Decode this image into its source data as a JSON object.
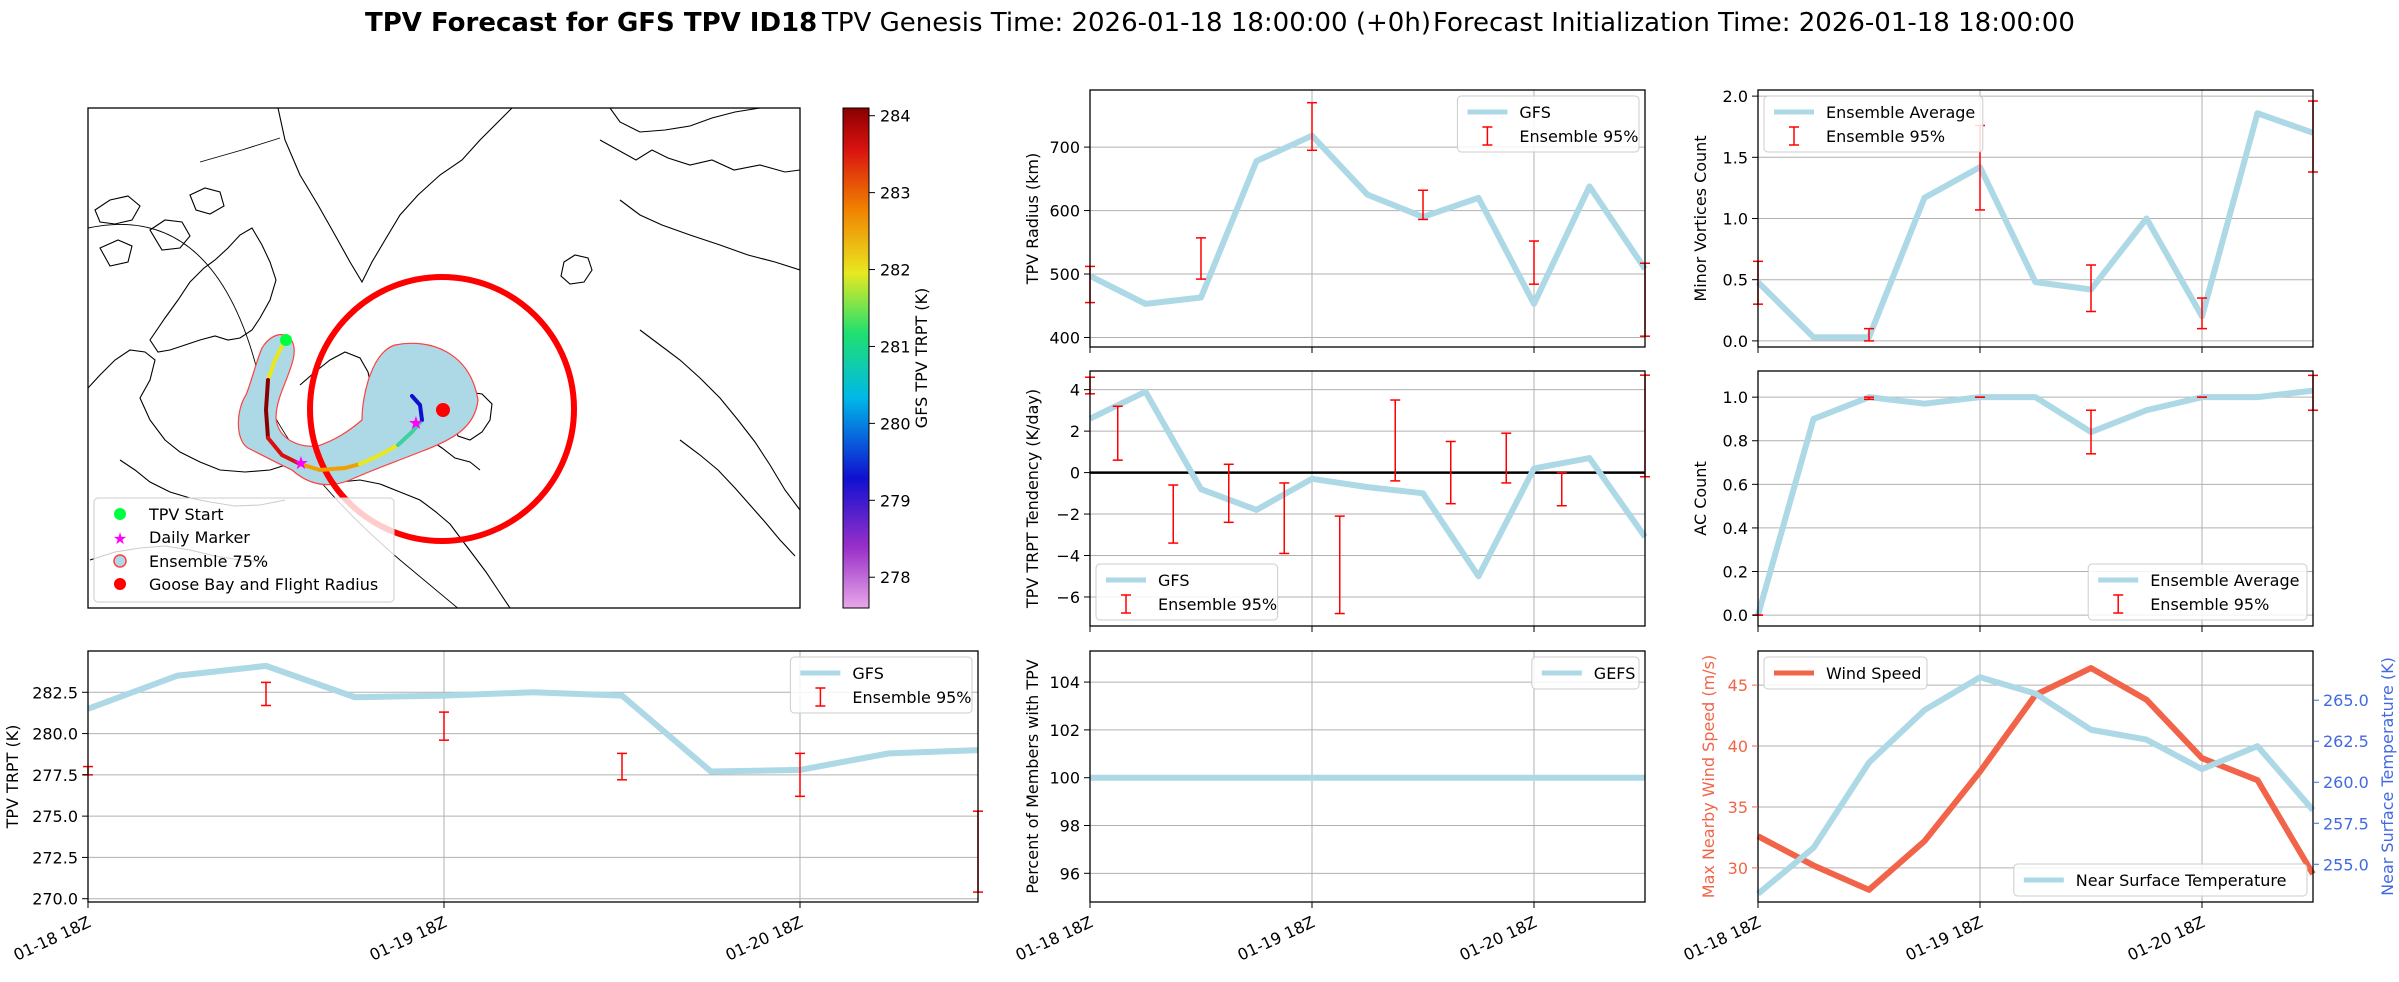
{
  "title": {
    "bold": "TPV Forecast for GFS TPV ID18",
    "genesis": "TPV Genesis Time: 2026-01-18 18:00:00 (+0h)",
    "init": "Forecast Initialization Time: 2026-01-18 18:00:00"
  },
  "colors": {
    "gfs_line": "#add8e6",
    "err": "#ff0000",
    "wind": "#f26449",
    "temp_axis": "#4169e1",
    "wind_axis": "#f26449",
    "ensemble_fill": "#add8e6",
    "radius": "#ff0000"
  },
  "x_tick_labels": [
    "01-18 18Z",
    "01-19 18Z",
    "01-20 18Z"
  ],
  "map": {
    "legend": [
      "TPV Start",
      "Daily Marker",
      "Ensemble 75%",
      "Goose Bay and Flight Radius"
    ],
    "colorbar": {
      "label": "GFS TPV TRPT (K)",
      "ticks": [
        "284",
        "283",
        "282",
        "281",
        "280",
        "279",
        "278"
      ],
      "min": 277.6,
      "max": 284.1
    }
  },
  "chart_data": [
    {
      "id": "trpt",
      "type": "line",
      "ylabel": "TPV TRPT (K)",
      "ylim": [
        269.8,
        285.0
      ],
      "yticks": [
        "270.0",
        "272.5",
        "275.0",
        "277.5",
        "280.0",
        "282.5"
      ],
      "ytick_values": [
        270.0,
        272.5,
        275.0,
        277.5,
        280.0,
        282.5
      ],
      "x": [
        0,
        0.25,
        0.5,
        0.75,
        1.0,
        1.25,
        1.5,
        1.75,
        2.0,
        2.25,
        2.5
      ],
      "series": [
        {
          "name": "GFS",
          "values": [
            281.5,
            283.5,
            284.1,
            282.2,
            282.3,
            282.5,
            282.3,
            277.7,
            277.8,
            278.8,
            279.0
          ]
        }
      ],
      "errorbars": [
        {
          "x": 0,
          "low": 277.5,
          "high": 278.0
        },
        {
          "x": 0.5,
          "low": 281.7,
          "high": 283.1
        },
        {
          "x": 1.0,
          "low": 279.6,
          "high": 281.3
        },
        {
          "x": 1.5,
          "low": 277.2,
          "high": 278.8
        },
        {
          "x": 2.0,
          "low": 276.2,
          "high": 278.8
        },
        {
          "x": 2.5,
          "low": 270.4,
          "high": 275.3
        }
      ],
      "legend": [
        "GFS",
        "Ensemble 95%"
      ]
    },
    {
      "id": "radius",
      "type": "line",
      "ylabel": "TPV Radius (km)",
      "ylim": [
        385,
        790
      ],
      "yticks": [
        "400",
        "500",
        "600",
        "700"
      ],
      "ytick_values": [
        400,
        500,
        600,
        700
      ],
      "x": [
        0,
        0.25,
        0.5,
        0.75,
        1.0,
        1.25,
        1.5,
        1.75,
        2.0,
        2.25,
        2.5
      ],
      "series": [
        {
          "name": "GFS",
          "values": [
            497,
            453,
            463,
            678,
            718,
            625,
            590,
            620,
            453,
            638,
            508
          ]
        }
      ],
      "errorbars": [
        {
          "x": 0,
          "low": 455,
          "high": 512
        },
        {
          "x": 0.5,
          "low": 492,
          "high": 557
        },
        {
          "x": 1.0,
          "low": 695,
          "high": 770
        },
        {
          "x": 1.5,
          "low": 586,
          "high": 632
        },
        {
          "x": 2.0,
          "low": 484,
          "high": 552
        },
        {
          "x": 2.5,
          "low": 402,
          "high": 517
        }
      ],
      "legend": [
        "GFS",
        "Ensemble 95%"
      ]
    },
    {
      "id": "minor",
      "type": "line",
      "ylabel": "Minor Vortices Count",
      "ylim": [
        -0.05,
        2.05
      ],
      "yticks": [
        "0.0",
        "0.5",
        "1.0",
        "1.5",
        "2.0"
      ],
      "ytick_values": [
        0,
        0.5,
        1.0,
        1.5,
        2.0
      ],
      "x": [
        0,
        0.25,
        0.5,
        0.75,
        1.0,
        1.25,
        1.5,
        1.75,
        2.0,
        2.25,
        2.5
      ],
      "series": [
        {
          "name": "Ensemble Average",
          "values": [
            0.48,
            0.03,
            0.03,
            1.17,
            1.42,
            0.48,
            0.42,
            1.0,
            0.2,
            1.86,
            1.7
          ]
        }
      ],
      "errorbars": [
        {
          "x": 0,
          "low": 0.3,
          "high": 0.65
        },
        {
          "x": 0.5,
          "low": 0.0,
          "high": 0.1
        },
        {
          "x": 1.0,
          "low": 1.07,
          "high": 1.76
        },
        {
          "x": 1.5,
          "low": 0.24,
          "high": 0.62
        },
        {
          "x": 2.0,
          "low": 0.1,
          "high": 0.35
        },
        {
          "x": 2.5,
          "low": 1.38,
          "high": 1.96
        }
      ],
      "legend": [
        "Ensemble Average",
        "Ensemble 95%"
      ]
    },
    {
      "id": "tendency",
      "type": "line",
      "ylabel": "TPV TRPT Tendency (K/day)",
      "ylim": [
        -7.4,
        4.9
      ],
      "yticks": [
        "−6",
        "−4",
        "−2",
        "0",
        "2",
        "4"
      ],
      "ytick_values": [
        -6,
        -4,
        -2,
        0,
        2,
        4
      ],
      "zero_line": true,
      "x": [
        0,
        0.25,
        0.5,
        0.75,
        1.0,
        1.25,
        1.5,
        1.75,
        2.0,
        2.25,
        2.5
      ],
      "series": [
        {
          "name": "GFS",
          "values": [
            2.6,
            3.9,
            -0.8,
            -1.8,
            -0.3,
            -0.7,
            -1.0,
            -5.0,
            0.2,
            0.7,
            -3.1
          ]
        }
      ],
      "errorbars": [
        {
          "x": 0.125,
          "low": 0.6,
          "high": 3.2
        },
        {
          "x": 0.375,
          "low": -3.4,
          "high": -0.6
        },
        {
          "x": 0.625,
          "low": -2.4,
          "high": 0.4
        },
        {
          "x": 0.875,
          "low": -3.9,
          "high": -0.5
        },
        {
          "x": 1.125,
          "low": -6.8,
          "high": -2.1
        },
        {
          "x": 1.375,
          "low": -0.4,
          "high": 3.5
        },
        {
          "x": 1.625,
          "low": -1.5,
          "high": 1.5
        },
        {
          "x": 1.875,
          "low": -0.5,
          "high": 1.9
        },
        {
          "x": 2.125,
          "low": -1.6,
          "high": 0.0
        },
        {
          "x": 2.5,
          "low": -0.2,
          "high": 4.7
        },
        {
          "x": 0,
          "low": 3.8,
          "high": 4.6
        }
      ],
      "legend": [
        "GFS",
        "Ensemble 95%"
      ]
    },
    {
      "id": "ac",
      "type": "line",
      "ylabel": "AC Count",
      "ylim": [
        -0.05,
        1.12
      ],
      "yticks": [
        "0.0",
        "0.2",
        "0.4",
        "0.6",
        "0.8",
        "1.0"
      ],
      "ytick_values": [
        0,
        0.2,
        0.4,
        0.6,
        0.8,
        1.0
      ],
      "x": [
        0,
        0.25,
        0.5,
        0.75,
        1.0,
        1.25,
        1.5,
        1.75,
        2.0,
        2.25,
        2.5
      ],
      "series": [
        {
          "name": "Ensemble Average",
          "values": [
            0.0,
            0.9,
            1.0,
            0.97,
            1.0,
            1.0,
            0.84,
            0.94,
            1.0,
            1.0,
            1.03
          ]
        }
      ],
      "errorbars": [
        {
          "x": 0,
          "low": 0.0,
          "high": 0.0
        },
        {
          "x": 0.5,
          "low": 0.99,
          "high": 1.0
        },
        {
          "x": 1.0,
          "low": 1.0,
          "high": 1.0
        },
        {
          "x": 1.5,
          "low": 0.74,
          "high": 0.94
        },
        {
          "x": 2.0,
          "low": 1.0,
          "high": 1.0
        },
        {
          "x": 2.5,
          "low": 0.94,
          "high": 1.1
        }
      ],
      "legend": [
        "Ensemble Average",
        "Ensemble 95%"
      ]
    },
    {
      "id": "percent",
      "type": "line",
      "ylabel": "Percent of Members with TPV",
      "ylim": [
        94.8,
        105.3
      ],
      "yticks": [
        "96",
        "98",
        "100",
        "102",
        "104"
      ],
      "ytick_values": [
        96,
        98,
        100,
        102,
        104
      ],
      "x": [
        0,
        0.25,
        0.5,
        0.75,
        1.0,
        1.25,
        1.5,
        1.75,
        2.0,
        2.25,
        2.5
      ],
      "series": [
        {
          "name": "GEFS",
          "values": [
            100,
            100,
            100,
            100,
            100,
            100,
            100,
            100,
            100,
            100,
            100
          ]
        }
      ],
      "errorbars": [],
      "legend": [
        "GEFS"
      ]
    },
    {
      "id": "wind",
      "type": "line",
      "ylabel": "Max Nearby Wind Speed (m/s)",
      "ylabel2": "Near Surface Temperature (K)",
      "ylim": [
        27.2,
        47.8
      ],
      "yticks": [
        "30",
        "35",
        "40",
        "45"
      ],
      "ytick_values": [
        30,
        35,
        40,
        45
      ],
      "ylim2": [
        252.7,
        268.0
      ],
      "yticks2": [
        "255.0",
        "257.5",
        "260.0",
        "262.5",
        "265.0"
      ],
      "ytick_values2": [
        255.0,
        257.5,
        260.0,
        262.5,
        265.0
      ],
      "x": [
        0,
        0.25,
        0.5,
        0.75,
        1.0,
        1.25,
        1.5,
        1.75,
        2.0,
        2.25,
        2.5
      ],
      "series": [
        {
          "name": "Wind Speed",
          "axis": "left",
          "values": [
            32.6,
            30.2,
            28.2,
            32.2,
            37.9,
            44.2,
            46.4,
            43.8,
            39.0,
            37.2,
            29.5
          ]
        },
        {
          "name": "Near Surface Temperature",
          "axis": "right",
          "values": [
            253.2,
            256.0,
            261.2,
            264.4,
            266.4,
            265.4,
            263.2,
            262.6,
            260.8,
            262.2,
            258.3
          ]
        }
      ],
      "errorbars": [],
      "legend": [
        "Wind Speed",
        "Near Surface Temperature"
      ]
    }
  ]
}
